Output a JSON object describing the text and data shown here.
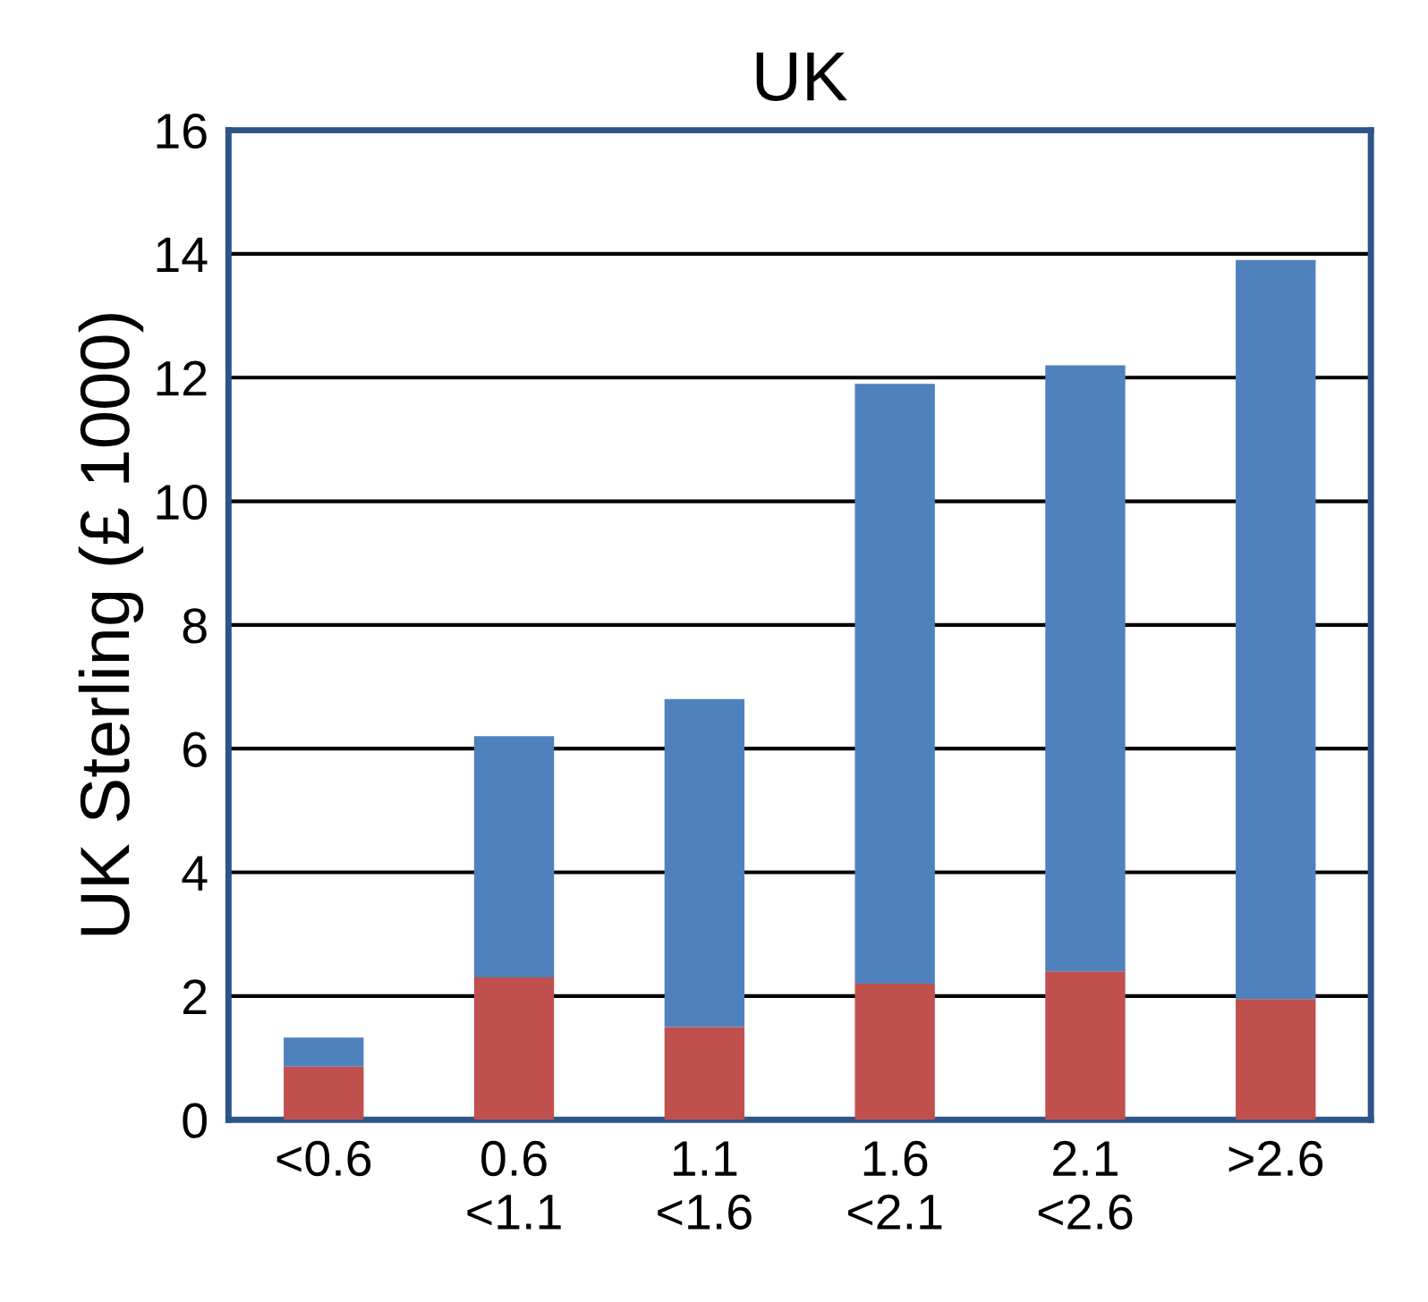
{
  "chart_data": {
    "type": "bar",
    "title": "UK",
    "ylabel": "UK Sterling (£ 1000)",
    "stacked": true,
    "categories": [
      "<0.6",
      "0.6\n<1.1",
      "1.1\n<1.6",
      "1.6\n<2.1",
      "2.1\n<2.6",
      ">2.6"
    ],
    "series": [
      {
        "color": "#c0504d",
        "values": [
          0.86,
          2.3,
          1.5,
          2.2,
          2.4,
          1.95
        ]
      },
      {
        "color": "#4f81bd",
        "values": [
          0.47,
          3.9,
          5.3,
          9.7,
          9.8,
          11.95
        ]
      }
    ],
    "ylim": [
      0,
      16
    ],
    "yticks": [
      0,
      2,
      4,
      6,
      8,
      10,
      12,
      14,
      16
    ],
    "grid": "y"
  }
}
